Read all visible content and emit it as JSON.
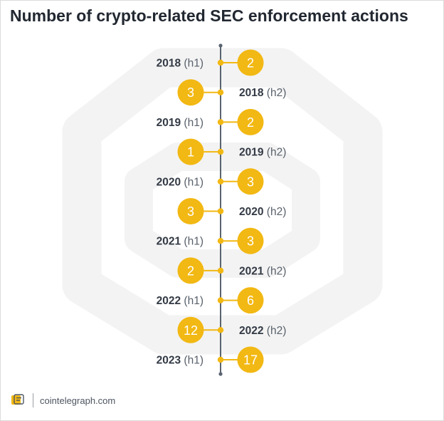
{
  "title": "Number of crypto-related SEC enforcement actions",
  "footer": {
    "site": "cointelegraph.com"
  },
  "colors": {
    "accent": "#f2b813",
    "axis": "#5a6470",
    "label_bold": "#333a45",
    "label_light": "#59616b",
    "watermark": "#f3f3f3"
  },
  "chart_data": {
    "type": "timeline",
    "title": "Number of crypto-related SEC enforcement actions",
    "points": [
      {
        "year": "2018",
        "half": "(h1)",
        "value": 2
      },
      {
        "year": "2018",
        "half": "(h2)",
        "value": 3
      },
      {
        "year": "2019",
        "half": "(h1)",
        "value": 2
      },
      {
        "year": "2019",
        "half": "(h2)",
        "value": 1
      },
      {
        "year": "2020",
        "half": "(h1)",
        "value": 3
      },
      {
        "year": "2020",
        "half": "(h2)",
        "value": 3
      },
      {
        "year": "2021",
        "half": "(h1)",
        "value": 3
      },
      {
        "year": "2021",
        "half": "(h2)",
        "value": 2
      },
      {
        "year": "2022",
        "half": "(h1)",
        "value": 6
      },
      {
        "year": "2022",
        "half": "(h2)",
        "value": 12
      },
      {
        "year": "2023",
        "half": "(h1)",
        "value": 17
      }
    ]
  }
}
